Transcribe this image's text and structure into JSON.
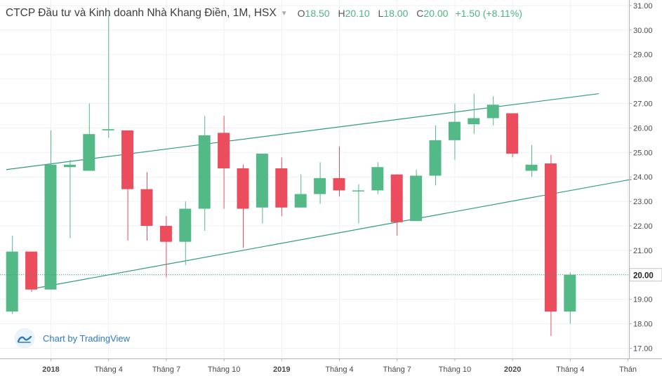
{
  "header": {
    "title": "CTCP Đầu tư và Kinh doanh Nhà Khang Điền, 1M, HSX",
    "ohlc": [
      {
        "key": "O",
        "value": "18.50"
      },
      {
        "key": "H",
        "value": "20.10"
      },
      {
        "key": "L",
        "value": "18.00"
      },
      {
        "key": "C",
        "value": "20.00"
      }
    ],
    "change": "+1.50 (+8.11%)"
  },
  "attribution": {
    "label": "Chart by TradingView",
    "icon": "tradingview-logo-icon"
  },
  "colors": {
    "up": "#53b987",
    "down": "#eb4d5c",
    "trendline": "#2f9a83",
    "price_line": "#2f9a83",
    "grid": "#eef0f3",
    "axis_text": "#4a4a4a",
    "last_price_badge": "#ffffff"
  },
  "chart_data": {
    "type": "candlestick",
    "title": "CTCP Đầu tư và Kinh doanh Nhà Khang Điền, 1M, HSX",
    "interval": "1M",
    "ylim": [
      16.8,
      31.0
    ],
    "y_ticks": [
      "17.00",
      "18.00",
      "19.00",
      "20.00",
      "21.00",
      "22.00",
      "23.00",
      "24.00",
      "25.00",
      "26.00",
      "27.00",
      "28.00",
      "29.00",
      "30.00",
      "31.00"
    ],
    "x_ticks": [
      {
        "label": "2018",
        "bold": true,
        "index": 2
      },
      {
        "label": "Tháng 4",
        "bold": false,
        "index": 5
      },
      {
        "label": "Tháng 7",
        "bold": false,
        "index": 8
      },
      {
        "label": "Tháng 10",
        "bold": false,
        "index": 11
      },
      {
        "label": "2019",
        "bold": true,
        "index": 14
      },
      {
        "label": "Tháng 4",
        "bold": false,
        "index": 17
      },
      {
        "label": "Tháng 7",
        "bold": false,
        "index": 20
      },
      {
        "label": "Tháng 10",
        "bold": false,
        "index": 23
      },
      {
        "label": "2020",
        "bold": true,
        "index": 26
      },
      {
        "label": "Tháng 4",
        "bold": false,
        "index": 29
      },
      {
        "label": "Thán",
        "bold": false,
        "index": 32
      }
    ],
    "candles": [
      {
        "o": 18.5,
        "h": 21.6,
        "l": 18.4,
        "c": 20.95
      },
      {
        "o": 20.95,
        "h": 20.95,
        "l": 19.3,
        "c": 19.4
      },
      {
        "o": 19.4,
        "h": 25.9,
        "l": 19.4,
        "c": 24.5
      },
      {
        "o": 24.4,
        "h": 24.7,
        "l": 21.5,
        "c": 24.5
      },
      {
        "o": 24.25,
        "h": 27.0,
        "l": 24.25,
        "c": 25.75
      },
      {
        "o": 25.9,
        "h": 30.6,
        "l": 25.6,
        "c": 25.95
      },
      {
        "o": 25.9,
        "h": 25.9,
        "l": 21.4,
        "c": 23.5
      },
      {
        "o": 23.5,
        "h": 24.2,
        "l": 21.4,
        "c": 22.0
      },
      {
        "o": 22.0,
        "h": 22.4,
        "l": 19.9,
        "c": 21.35
      },
      {
        "o": 21.35,
        "h": 23.0,
        "l": 20.4,
        "c": 22.7
      },
      {
        "o": 22.7,
        "h": 26.5,
        "l": 21.8,
        "c": 25.7
      },
      {
        "o": 25.8,
        "h": 26.5,
        "l": 22.7,
        "c": 24.35
      },
      {
        "o": 24.35,
        "h": 24.5,
        "l": 21.1,
        "c": 22.7
      },
      {
        "o": 22.75,
        "h": 24.9,
        "l": 22.1,
        "c": 24.95
      },
      {
        "o": 24.35,
        "h": 24.8,
        "l": 22.4,
        "c": 22.75
      },
      {
        "o": 22.75,
        "h": 24.1,
        "l": 22.75,
        "c": 23.3
      },
      {
        "o": 23.3,
        "h": 24.6,
        "l": 22.9,
        "c": 23.95
      },
      {
        "o": 23.95,
        "h": 25.25,
        "l": 23.2,
        "c": 23.45
      },
      {
        "o": 23.45,
        "h": 23.7,
        "l": 22.1,
        "c": 23.45
      },
      {
        "o": 23.45,
        "h": 24.6,
        "l": 23.3,
        "c": 24.4
      },
      {
        "o": 24.1,
        "h": 24.1,
        "l": 21.6,
        "c": 22.15
      },
      {
        "o": 22.2,
        "h": 24.3,
        "l": 22.2,
        "c": 24.05
      },
      {
        "o": 24.05,
        "h": 26.1,
        "l": 23.65,
        "c": 25.5
      },
      {
        "o": 25.5,
        "h": 27.0,
        "l": 24.7,
        "c": 26.25
      },
      {
        "o": 26.15,
        "h": 27.4,
        "l": 25.75,
        "c": 26.4
      },
      {
        "o": 26.4,
        "h": 27.3,
        "l": 26.1,
        "c": 26.95
      },
      {
        "o": 26.6,
        "h": 26.6,
        "l": 24.8,
        "c": 24.95
      },
      {
        "o": 24.25,
        "h": 25.3,
        "l": 24.0,
        "c": 24.5
      },
      {
        "o": 24.55,
        "h": 24.9,
        "l": 17.5,
        "c": 18.5
      },
      {
        "o": 18.5,
        "h": 20.1,
        "l": 18.0,
        "c": 20.0
      }
    ],
    "trendlines": [
      {
        "from": {
          "index": -0.3,
          "price": 24.3
        },
        "to": {
          "index": 30.5,
          "price": 27.4
        }
      },
      {
        "from": {
          "index": 1.2,
          "price": 19.45
        },
        "to": {
          "index": 32.2,
          "price": 23.9
        }
      }
    ],
    "price_line": 20.0,
    "last_price_label": "20.00"
  }
}
